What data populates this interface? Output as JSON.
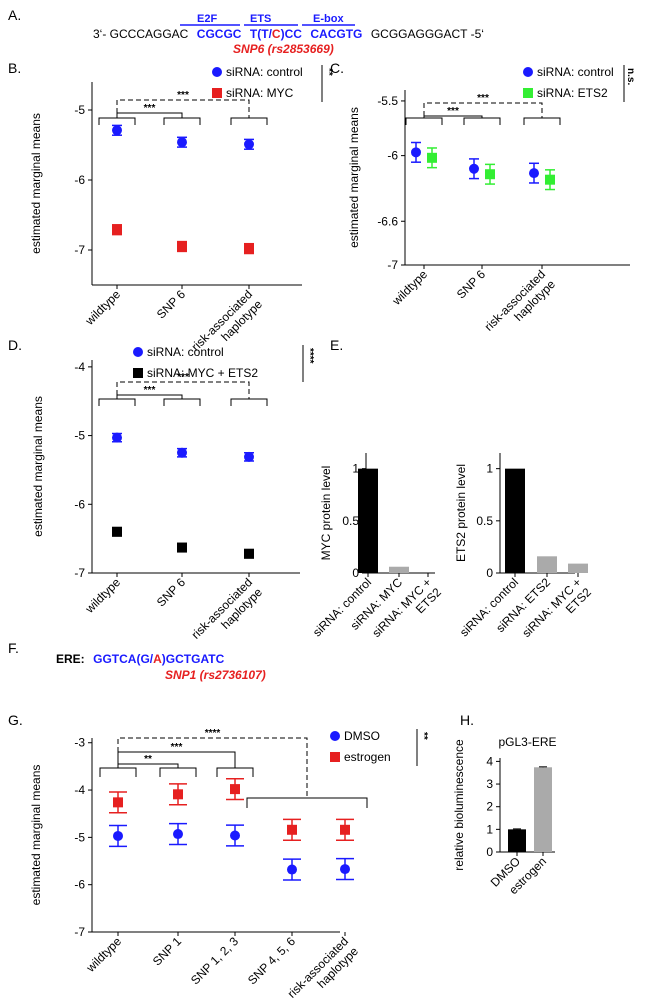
{
  "panel_labels": {
    "A": "A.",
    "B": "B.",
    "C": "C.",
    "D": "D.",
    "E": "E.",
    "F": "F.",
    "G": "G.",
    "H": "H."
  },
  "panelA": {
    "prefix": "3‘- GCCCAGGAC",
    "e2f_label": "E2F",
    "e2f_seq": "CGCGC",
    "ets_label": "ETS",
    "ets_seq_1": "T(T/",
    "ets_snp": "C",
    "ets_seq_2": ")CC",
    "ebox_label": "E-box",
    "ebox_seq": "CACGTG",
    "suffix": "GCGGAGGGACT -5‘",
    "snp_label": "SNP6 (rs2853669)"
  },
  "panelF": {
    "prefix": "ERE:",
    "seq_1": "GGTCA(G/",
    "snp": "A",
    "seq_2": ")GCTGATC",
    "snp_label": "SNP1 (rs2736107)"
  },
  "colors": {
    "blue": "#1a1aff",
    "red": "#e62020",
    "green": "#33ee33",
    "black": "#000000",
    "gray": "#aaaaaa"
  },
  "chart_data": [
    {
      "id": "B",
      "type": "scatter",
      "ylabel": "estimated marginal means",
      "ylim": [
        -7.5,
        -4.6
      ],
      "yticks": [
        -7,
        -6,
        -5
      ],
      "ytick_labels": [
        "-7",
        "-6",
        "-5"
      ],
      "categories": [
        "wildtype",
        "SNP 6",
        "risk-associated haplotype"
      ],
      "category_lines": [
        [
          "wildtype"
        ],
        [
          "SNP 6"
        ],
        [
          "risk-associated",
          "haplotype"
        ]
      ],
      "series": [
        {
          "name": "siRNA: control",
          "color": "#1a1aff",
          "marker": "circle",
          "values": [
            -5.29,
            -5.46,
            -5.49
          ],
          "err": [
            0.07,
            0.07,
            0.07
          ]
        },
        {
          "name": "siRNA: MYC",
          "color": "#e62020",
          "marker": "square",
          "values": [
            -6.71,
            -6.95,
            -6.98
          ],
          "err": [
            0.07,
            0.07,
            0.07
          ]
        }
      ],
      "comparisons": [
        "***",
        "***"
      ],
      "legend_sig": "**"
    },
    {
      "id": "C",
      "type": "scatter",
      "ylabel": "estimated marginal means",
      "ylim": [
        -7.0,
        -5.4
      ],
      "yticks": [
        -7,
        -6.6,
        -6,
        -5.5
      ],
      "ytick_labels": [
        "-7",
        "-6.6",
        "-6",
        "-5.5"
      ],
      "categories": [
        "wildtype",
        "SNP 6",
        "risk-associated haplotype"
      ],
      "category_lines": [
        [
          "wildtype"
        ],
        [
          "SNP 6"
        ],
        [
          "risk-associated",
          "haplotype"
        ]
      ],
      "series": [
        {
          "name": "siRNA: control",
          "color": "#1a1aff",
          "marker": "circle",
          "values": [
            -5.97,
            -6.12,
            -6.16
          ],
          "err": [
            0.09,
            0.09,
            0.09
          ]
        },
        {
          "name": "siRNA: ETS2",
          "color": "#33ee33",
          "marker": "square",
          "values": [
            -6.02,
            -6.17,
            -6.22
          ],
          "err": [
            0.09,
            0.09,
            0.09
          ]
        }
      ],
      "comparisons": [
        "***",
        "***"
      ],
      "legend_sig": "n.s."
    },
    {
      "id": "D",
      "type": "scatter",
      "ylabel": "estimated marginal means",
      "ylim": [
        -7.0,
        -3.9
      ],
      "yticks": [
        -7,
        -6,
        -5,
        -4
      ],
      "ytick_labels": [
        "-7",
        "-6",
        "-5",
        "-4"
      ],
      "categories": [
        "wildtype",
        "SNP 6",
        "risk-associated haplotype"
      ],
      "category_lines": [
        [
          "wildtype"
        ],
        [
          "SNP 6"
        ],
        [
          "risk-associated",
          "haplotype"
        ]
      ],
      "series": [
        {
          "name": "siRNA: control",
          "color": "#1a1aff",
          "marker": "circle",
          "values": [
            -5.03,
            -5.25,
            -5.31
          ],
          "err": [
            0.06,
            0.06,
            0.06
          ]
        },
        {
          "name": "siRNA: MYC + ETS2",
          "color": "#000000",
          "marker": "square",
          "values": [
            -6.4,
            -6.63,
            -6.72
          ],
          "err": [
            0.06,
            0.06,
            0.06
          ]
        }
      ],
      "comparisons": [
        "***",
        "***"
      ],
      "legend_sig": "****"
    },
    {
      "id": "E1",
      "type": "bar",
      "ylabel": "MYC protein level",
      "ylim": [
        0,
        1.15
      ],
      "yticks": [
        0,
        0.5,
        1
      ],
      "ytick_labels": [
        "0",
        "0.5",
        "1"
      ],
      "categories": [
        "siRNA: control",
        "siRNA: MYC",
        "siRNA: MYC + ETS2"
      ],
      "category_lines": [
        [
          "siRNA: control"
        ],
        [
          "siRNA: MYC"
        ],
        [
          "siRNA: MYC +",
          "ETS2"
        ]
      ],
      "values": [
        1.0,
        0.06,
        0.0
      ],
      "colors": [
        "#000000",
        "#aaaaaa",
        "#aaaaaa"
      ]
    },
    {
      "id": "E2",
      "type": "bar",
      "ylabel": "ETS2 protein level",
      "ylim": [
        0,
        1.15
      ],
      "yticks": [
        0,
        0.5,
        1
      ],
      "ytick_labels": [
        "0",
        "0.5",
        "1"
      ],
      "categories": [
        "siRNA: control",
        "siRNA: ETS2",
        "siRNA: MYC + ETS2"
      ],
      "category_lines": [
        [
          "siRNA: control"
        ],
        [
          "siRNA: ETS2"
        ],
        [
          "siRNA: MYC +",
          "ETS2"
        ]
      ],
      "values": [
        1.0,
        0.16,
        0.09
      ],
      "colors": [
        "#000000",
        "#aaaaaa",
        "#aaaaaa"
      ]
    },
    {
      "id": "G",
      "type": "scatter",
      "ylabel": "estimated marginal means",
      "ylim": [
        -7.0,
        -2.9
      ],
      "yticks": [
        -7,
        -6,
        -5,
        -4,
        -3
      ],
      "ytick_labels": [
        "-7",
        "-6",
        "-5",
        "-4",
        "-3"
      ],
      "categories": [
        "wildtype",
        "SNP 1",
        "SNP 1, 2, 3",
        "SNP 4, 5, 6",
        "risk-associated haplotype"
      ],
      "category_lines": [
        [
          "wildtype"
        ],
        [
          "SNP 1"
        ],
        [
          "SNP 1, 2, 3"
        ],
        [
          "SNP 4, 5, 6"
        ],
        [
          "risk-associated",
          "haplotype"
        ]
      ],
      "series": [
        {
          "name": "DMSO",
          "color": "#1a1aff",
          "marker": "circle",
          "values": [
            -4.97,
            -4.93,
            -4.96,
            -5.68,
            -5.67
          ],
          "err": [
            0.22,
            0.22,
            0.22,
            0.22,
            0.22
          ]
        },
        {
          "name": "estrogen",
          "color": "#e62020",
          "marker": "square",
          "values": [
            -4.26,
            -4.09,
            -3.98,
            -4.84,
            -4.84
          ],
          "err": [
            0.22,
            0.22,
            0.22,
            0.22,
            0.22
          ]
        }
      ],
      "comparisons": [
        "**",
        "***",
        "****"
      ],
      "legend_sig": "**"
    },
    {
      "id": "H",
      "type": "bar",
      "title": "pGL3-ERE",
      "ylabel": "relative bioluminescence",
      "ylim": [
        0,
        4.15
      ],
      "yticks": [
        0,
        1,
        2,
        3,
        4
      ],
      "ytick_labels": [
        "0",
        "1",
        "2",
        "3",
        "4"
      ],
      "categories": [
        "DMSO",
        "estrogen"
      ],
      "category_lines": [
        [
          "DMSO"
        ],
        [
          "estrogen"
        ]
      ],
      "values": [
        1.0,
        3.74
      ],
      "err": [
        0.02,
        0.02
      ],
      "colors": [
        "#000000",
        "#aaaaaa"
      ]
    }
  ]
}
